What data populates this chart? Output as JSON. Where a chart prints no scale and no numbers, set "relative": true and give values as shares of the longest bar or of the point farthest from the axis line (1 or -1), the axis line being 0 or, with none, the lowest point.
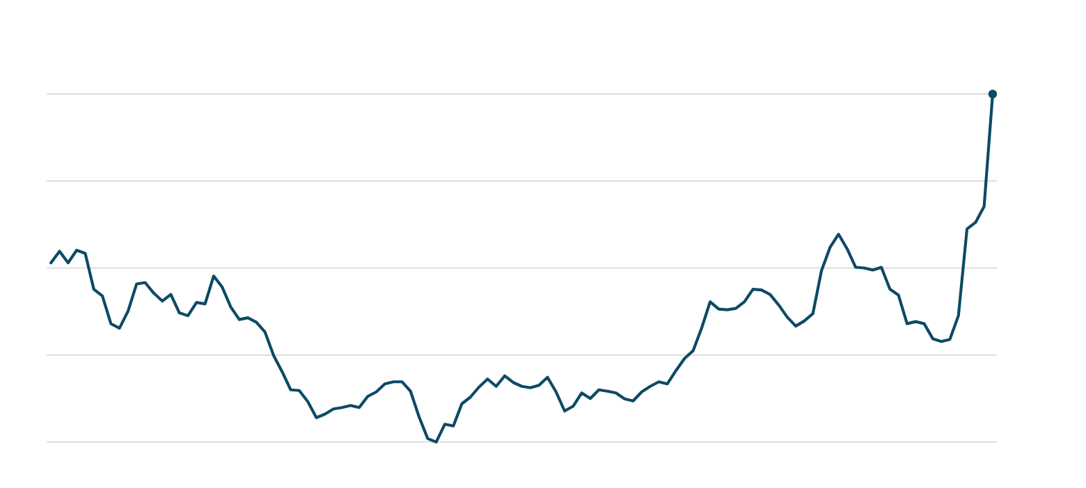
{
  "chart_data": {
    "type": "line",
    "relative": true,
    "grid": "y",
    "legend": false,
    "categories": [
      null,
      null,
      null,
      null,
      null,
      null,
      null,
      null,
      null,
      null,
      null,
      null,
      null,
      null,
      null,
      null,
      null,
      null,
      null,
      null,
      null,
      null,
      null,
      null,
      null,
      null,
      null,
      null,
      null,
      null,
      null,
      null,
      null,
      null,
      null,
      null,
      null,
      null,
      null,
      null,
      null,
      null,
      null,
      null,
      null,
      null,
      null,
      null,
      null,
      null,
      null,
      null,
      null,
      null,
      null,
      null,
      null,
      null,
      null,
      null,
      null,
      null,
      null,
      null,
      null,
      null,
      null,
      null,
      null,
      null,
      null,
      null,
      null,
      null,
      null,
      null,
      null,
      null,
      null,
      null,
      null,
      null,
      null,
      null,
      null,
      null,
      null,
      null,
      null,
      null,
      null,
      null,
      null,
      null,
      null,
      null,
      null,
      null,
      null,
      null,
      null,
      null,
      null,
      null,
      null,
      null,
      null,
      null,
      null,
      null,
      null
    ],
    "series": [
      {
        "color": "#0d4a66",
        "values": [
          0.515,
          0.548,
          0.515,
          0.551,
          0.542,
          0.439,
          0.42,
          0.34,
          0.327,
          0.376,
          0.454,
          0.458,
          0.428,
          0.405,
          0.424,
          0.371,
          0.363,
          0.401,
          0.397,
          0.477,
          0.445,
          0.388,
          0.352,
          0.357,
          0.344,
          0.316,
          0.249,
          0.202,
          0.15,
          0.148,
          0.116,
          0.07,
          0.08,
          0.095,
          0.099,
          0.105,
          0.099,
          0.131,
          0.144,
          0.167,
          0.173,
          0.173,
          0.146,
          0.072,
          0.01,
          0.0,
          0.051,
          0.046,
          0.11,
          0.129,
          0.158,
          0.181,
          0.16,
          0.19,
          0.171,
          0.16,
          0.156,
          0.163,
          0.186,
          0.144,
          0.089,
          0.103,
          0.141,
          0.125,
          0.15,
          0.146,
          0.141,
          0.124,
          0.118,
          0.144,
          0.16,
          0.173,
          0.167,
          0.205,
          0.24,
          0.262,
          0.327,
          0.403,
          0.382,
          0.38,
          0.384,
          0.403,
          0.439,
          0.437,
          0.424,
          0.394,
          0.359,
          0.333,
          0.348,
          0.369,
          0.492,
          0.559,
          0.597,
          0.555,
          0.502,
          0.5,
          0.494,
          0.502,
          0.439,
          0.422,
          0.34,
          0.346,
          0.34,
          0.297,
          0.289,
          0.295,
          0.363,
          0.612,
          0.631,
          0.677,
          1.0
        ]
      }
    ]
  }
}
